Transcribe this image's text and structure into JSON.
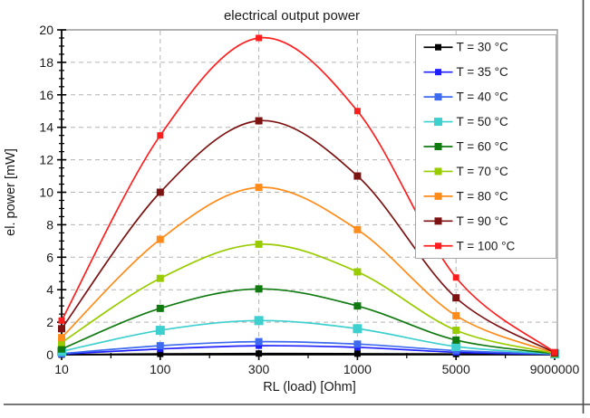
{
  "frame": {
    "right_border_color": "#4a4a4a",
    "bottom_border_color": "#4a4a4a",
    "background": "#ffffff"
  },
  "chart_data": {
    "type": "line",
    "title": "electrical output power",
    "xlabel": "RL (load) [Ohm]",
    "ylabel": "el. power [mW]",
    "categories": [
      "10",
      "100",
      "300",
      "1000",
      "5000",
      "9000000"
    ],
    "x_scale": "categorical-evenly-spaced",
    "ylim": [
      0,
      20
    ],
    "y_major_step": 2,
    "y_minor_step": 0.5,
    "grid": true,
    "grid_color": "#b3b3b3",
    "grid_style": "dashed",
    "frame_color": "#999999",
    "axis_color": "#000000",
    "legend_position": "top-right-inside",
    "legend_border_color": "#a6a6a6",
    "marker_shape": "square",
    "series": [
      {
        "name": "T = 30 °C",
        "color": "#000000",
        "marker_size": 7,
        "values": [
          0.0,
          0.05,
          0.07,
          0.06,
          0.04,
          0.0
        ]
      },
      {
        "name": "T = 35 °C",
        "color": "#1f1fff",
        "marker_size": 7,
        "values": [
          0.03,
          0.35,
          0.55,
          0.45,
          0.15,
          0.02
        ]
      },
      {
        "name": "T = 40 °C",
        "color": "#3e6af0",
        "marker_size": 8,
        "values": [
          0.06,
          0.55,
          0.8,
          0.65,
          0.25,
          0.03
        ]
      },
      {
        "name": "T = 50 °C",
        "color": "#3ecfcf",
        "marker_size": 10,
        "values": [
          0.2,
          1.5,
          2.1,
          1.6,
          0.5,
          0.05
        ]
      },
      {
        "name": "T = 60 °C",
        "color": "#107a10",
        "marker_size": 8,
        "values": [
          0.35,
          2.85,
          4.05,
          3.0,
          0.9,
          0.06
        ]
      },
      {
        "name": "T = 70 °C",
        "color": "#99cc00",
        "marker_size": 8,
        "values": [
          0.75,
          4.7,
          6.8,
          5.1,
          1.5,
          0.08
        ]
      },
      {
        "name": "T = 80 °C",
        "color": "#ff8c1a",
        "marker_size": 8,
        "values": [
          1.05,
          7.1,
          10.3,
          7.7,
          2.4,
          0.1
        ]
      },
      {
        "name": "T = 90 °C",
        "color": "#7d1212",
        "marker_size": 8,
        "values": [
          1.6,
          10.0,
          14.4,
          11.0,
          3.5,
          0.12
        ]
      },
      {
        "name": "T = 100 °C",
        "color": "#ff1e1e",
        "marker_size": 7,
        "values": [
          2.1,
          13.5,
          19.5,
          15.0,
          4.75,
          0.15
        ]
      }
    ]
  }
}
